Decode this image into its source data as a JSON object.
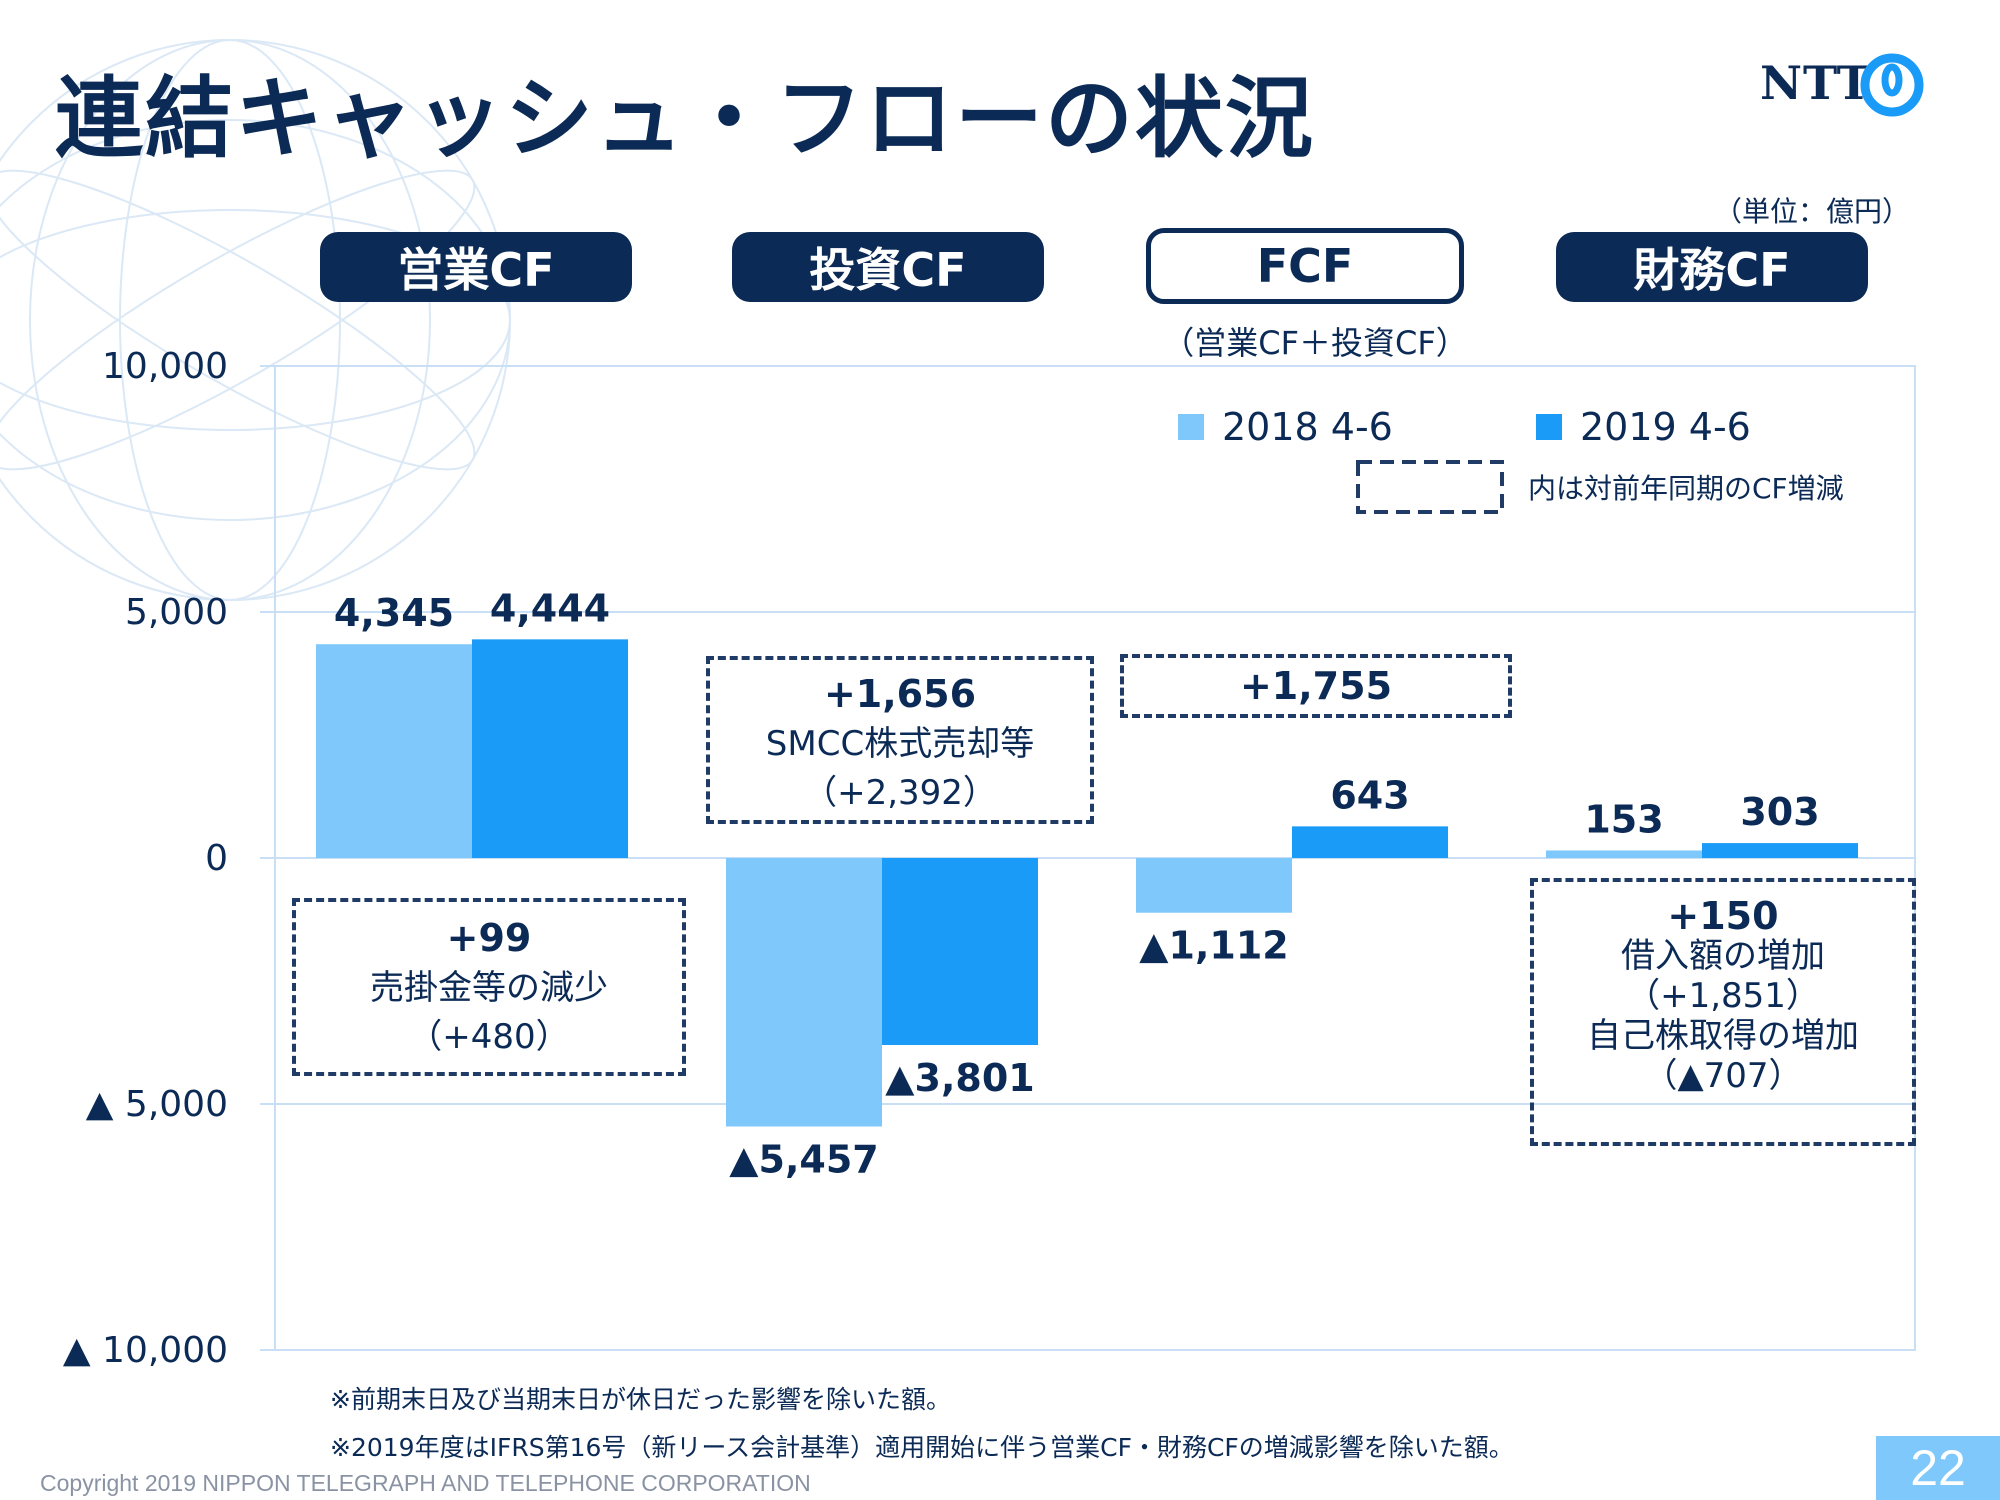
{
  "header": {
    "title": "連結キャッシュ・フローの状況",
    "logo_text": "NTT",
    "unit": "（単位：億円）"
  },
  "categories_header": [
    {
      "label": "営業CF",
      "style": "filled"
    },
    {
      "label": "投資CF",
      "style": "filled"
    },
    {
      "label": "FCF",
      "style": "outline",
      "sub": "（営業CF＋投資CF）"
    },
    {
      "label": "財務CF",
      "style": "filled"
    }
  ],
  "chart_data": {
    "type": "bar",
    "categories": [
      "営業CF",
      "投資CF",
      "FCF",
      "財務CF"
    ],
    "series": [
      {
        "name": "2018 4-6",
        "values": [
          4345,
          -5457,
          -1112,
          153
        ],
        "labels": [
          "4,345",
          "▲5,457",
          "▲1,112",
          "153"
        ],
        "color": "#7ec8fb"
      },
      {
        "name": "2019 4-6",
        "values": [
          4444,
          -3801,
          643,
          303
        ],
        "labels": [
          "4,444",
          "▲3,801",
          "643",
          "303"
        ],
        "color": "#1a9bf8"
      }
    ],
    "ylim": [
      -10000,
      10000
    ],
    "y_ticks": [
      10000,
      5000,
      0,
      -5000,
      -10000
    ],
    "y_tick_labels": [
      "10,000",
      "5,000",
      "0",
      "▲ 5,000",
      "▲ 10,000"
    ],
    "grid": true,
    "legend_position": "top-right",
    "legend_note": "内は対前年同期のCF増減"
  },
  "annotations": {
    "operating": {
      "big": "+99",
      "line1": "売掛金等の減少",
      "line2": "（+480）"
    },
    "investing": {
      "big": "+1,656",
      "line1": "SMCC株式売却等",
      "line2": "（+2,392）"
    },
    "fcf": {
      "big": "+1,755"
    },
    "financing": {
      "big": "+150",
      "line1": "借入額の増加",
      "line2": "（+1,851）",
      "line3": "自己株取得の増加",
      "line4": "（▲707）"
    }
  },
  "footnotes": [
    "※前期末日及び当期末日が休日だった影響を除いた額。",
    "※2019年度はIFRS第16号（新リース会計基準）適用開始に伴う営業CF・財務CFの増減影響を除いた額。"
  ],
  "footer": {
    "copyright": "Copyright 2019 NIPPON TELEGRAPH AND TELEPHONE CORPORATION",
    "page_number": "22"
  },
  "colors": {
    "navy": "#0b2a55",
    "light_bar": "#7ec8fb",
    "dark_bar": "#1a9bf8",
    "grid": "#c9dff5"
  }
}
